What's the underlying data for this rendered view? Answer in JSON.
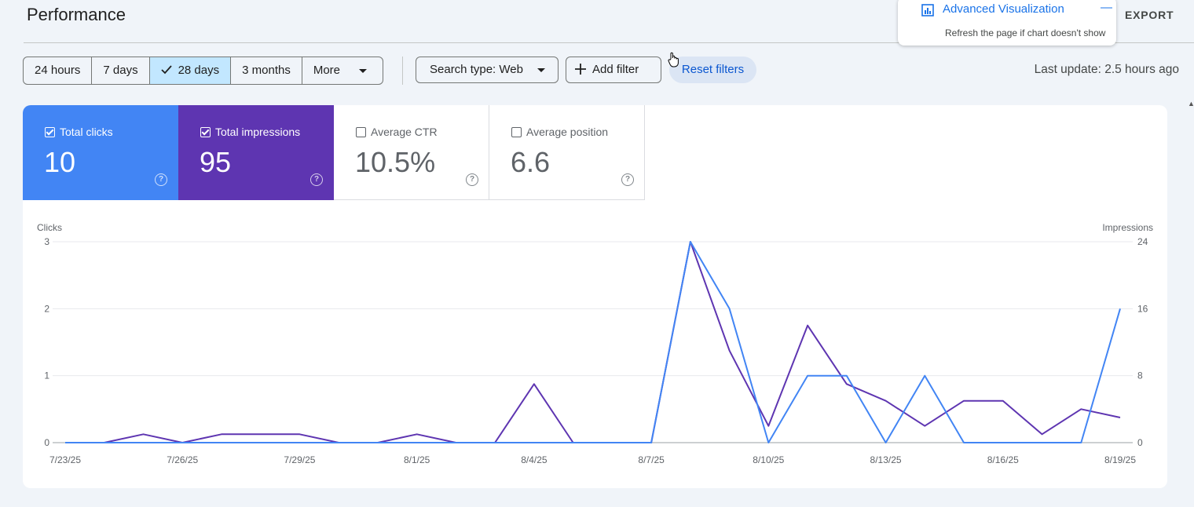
{
  "header": {
    "title": "Performance",
    "export_label": "EXPORT"
  },
  "popup": {
    "title": "Advanced Visualization",
    "minimize": "—",
    "note": "Refresh the page if chart doesn't show",
    "icon": "bar-chart-icon"
  },
  "toolbar": {
    "ranges": [
      {
        "label": "24 hours",
        "selected": false
      },
      {
        "label": "7 days",
        "selected": false
      },
      {
        "label": "28 days",
        "selected": true
      },
      {
        "label": "3 months",
        "selected": false
      },
      {
        "label": "More",
        "selected": false
      }
    ],
    "search_type": "Search type: Web",
    "add_filter": "Add filter",
    "reset_filters": "Reset filters",
    "last_update": "Last update: 2.5 hours ago"
  },
  "metrics": {
    "clicks": {
      "label": "Total clicks",
      "value": "10",
      "checked": true,
      "color": "#4285f4"
    },
    "impressions": {
      "label": "Total impressions",
      "value": "95",
      "checked": true,
      "color": "#5e35b1"
    },
    "ctr": {
      "label": "Average CTR",
      "value": "10.5%",
      "checked": false
    },
    "position": {
      "label": "Average position",
      "value": "6.6",
      "checked": false
    }
  },
  "chart_data": {
    "type": "line",
    "ylabel_left": "Clicks",
    "ylabel_right": "Impressions",
    "y_left_ticks": [
      "0",
      "1",
      "2",
      "3"
    ],
    "y_right_ticks": [
      "0",
      "8",
      "16",
      "24"
    ],
    "ylim_left": [
      0,
      3
    ],
    "ylim_right": [
      0,
      24
    ],
    "x_tick_labels": [
      "7/23/25",
      "7/26/25",
      "7/29/25",
      "8/1/25",
      "8/4/25",
      "8/7/25",
      "8/10/25",
      "8/13/25",
      "8/16/25",
      "8/19/25"
    ],
    "x": [
      "7/23/25",
      "7/24/25",
      "7/25/25",
      "7/26/25",
      "7/27/25",
      "7/28/25",
      "7/29/25",
      "7/30/25",
      "7/31/25",
      "8/1/25",
      "8/2/25",
      "8/3/25",
      "8/4/25",
      "8/5/25",
      "8/6/25",
      "8/7/25",
      "8/8/25",
      "8/9/25",
      "8/10/25",
      "8/11/25",
      "8/12/25",
      "8/13/25",
      "8/14/25",
      "8/15/25",
      "8/16/25",
      "8/17/25",
      "8/18/25",
      "8/19/25"
    ],
    "grid": true,
    "series": [
      {
        "name": "Clicks",
        "axis": "left",
        "color": "#4285f4",
        "values": [
          0,
          0,
          0,
          0,
          0,
          0,
          0,
          0,
          0,
          0,
          0,
          0,
          0,
          0,
          0,
          0,
          3,
          2,
          0,
          1,
          1,
          0,
          1,
          0,
          0,
          0,
          0,
          2
        ]
      },
      {
        "name": "Impressions",
        "axis": "right",
        "color": "#5e35b1",
        "values": [
          0,
          0,
          1,
          0,
          1,
          1,
          1,
          0,
          0,
          1,
          0,
          0,
          7,
          0,
          0,
          0,
          24,
          11,
          2,
          14,
          7,
          5,
          2,
          5,
          5,
          1,
          4,
          3
        ]
      }
    ]
  }
}
